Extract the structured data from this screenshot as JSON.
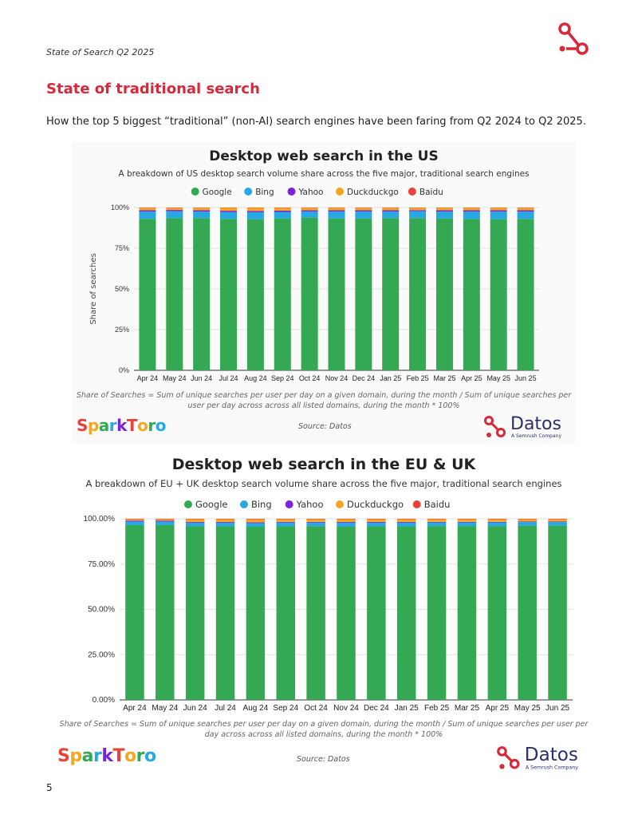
{
  "header": {
    "report_title": "State of Search Q2 2025"
  },
  "section": {
    "title": "State of traditional search",
    "intro": "How the top 5 biggest “traditional” (non-AI) search engines have been faring from Q2 2024 to Q2 2025."
  },
  "colors": {
    "Google": "#34a853",
    "Bing": "#28a8e0",
    "Yahoo": "#7b24d4",
    "Duckduckgo": "#f5a623",
    "Baidu": "#e8433a",
    "brand_red": "#d9283a"
  },
  "chart_data": [
    {
      "type": "bar",
      "stacked": true,
      "title": "Desktop web search in the US",
      "subtitle": "A breakdown of US desktop search volume share across the five major, traditional search engines",
      "ylabel": "Share of searches",
      "ylim": [
        0,
        100
      ],
      "yticks": [
        "0%",
        "25%",
        "50%",
        "75%",
        "100%"
      ],
      "legend_position": "top",
      "categories": [
        "Apr 24",
        "May 24",
        "Jun 24",
        "Jul 24",
        "Aug 24",
        "Sep 24",
        "Oct 24",
        "Nov 24",
        "Dec 24",
        "Jan 25",
        "Feb 25",
        "Mar 25",
        "Apr 25",
        "May 25",
        "Jun 25"
      ],
      "series": [
        {
          "name": "Google",
          "values": [
            93.0,
            93.5,
            93.5,
            93.0,
            92.8,
            93.3,
            93.8,
            93.3,
            93.3,
            93.5,
            93.5,
            93.2,
            93.0,
            92.8,
            93.0
          ]
        },
        {
          "name": "Bing",
          "values": [
            4.5,
            4.2,
            4.0,
            4.2,
            4.3,
            4.0,
            3.8,
            4.2,
            4.2,
            4.0,
            4.2,
            4.3,
            4.5,
            4.7,
            4.5
          ]
        },
        {
          "name": "Yahoo",
          "values": [
            0.8,
            0.8,
            0.8,
            0.8,
            0.8,
            0.8,
            0.7,
            0.8,
            0.8,
            0.8,
            0.7,
            0.8,
            0.8,
            0.8,
            0.8
          ]
        },
        {
          "name": "Duckduckgo",
          "values": [
            1.5,
            1.3,
            1.5,
            1.8,
            1.9,
            1.7,
            1.5,
            1.5,
            1.5,
            1.5,
            1.4,
            1.5,
            1.5,
            1.5,
            1.5
          ]
        },
        {
          "name": "Baidu",
          "values": [
            0.2,
            0.2,
            0.2,
            0.2,
            0.2,
            0.2,
            0.2,
            0.2,
            0.2,
            0.2,
            0.2,
            0.2,
            0.2,
            0.2,
            0.2
          ]
        }
      ],
      "footnote": "Share of Searches = Sum of unique searches per user per day on a given domain, during the month / Sum of unique searches per user per day across across all listed domains, during the month * 100%",
      "source": "Source: Datos"
    },
    {
      "type": "bar",
      "stacked": true,
      "title": "Desktop web search in the EU & UK",
      "subtitle": "A breakdown of EU + UK desktop search volume share across the five major, traditional search engines",
      "ylabel": "Share of searches",
      "ylim": [
        0,
        100
      ],
      "yticks": [
        "0.00%",
        "25.00%",
        "50.00%",
        "75.00%",
        "100.00%"
      ],
      "legend_position": "top",
      "categories": [
        "Apr 24",
        "May 24",
        "Jun 24",
        "Jul 24",
        "Aug 24",
        "Sep 24",
        "Oct 24",
        "Nov 24",
        "Dec 24",
        "Jan 25",
        "Feb 25",
        "Mar 25",
        "Apr 25",
        "May 25",
        "Jun 25"
      ],
      "series": [
        {
          "name": "Google",
          "values": [
            96.5,
            96.5,
            95.8,
            95.8,
            95.6,
            95.8,
            95.9,
            95.6,
            95.8,
            95.8,
            96.0,
            96.0,
            96.0,
            96.2,
            96.2
          ]
        },
        {
          "name": "Bing",
          "values": [
            2.0,
            2.0,
            2.0,
            2.0,
            2.0,
            2.1,
            2.0,
            2.2,
            2.0,
            2.0,
            2.0,
            2.0,
            2.0,
            2.0,
            2.0
          ]
        },
        {
          "name": "Yahoo",
          "values": [
            0.5,
            0.4,
            0.4,
            0.4,
            0.4,
            0.4,
            0.4,
            0.4,
            0.4,
            0.4,
            0.3,
            0.3,
            0.3,
            0.3,
            0.3
          ]
        },
        {
          "name": "Duckduckgo",
          "values": [
            0.7,
            0.8,
            1.5,
            1.5,
            1.7,
            1.4,
            1.4,
            1.5,
            1.5,
            1.5,
            1.4,
            1.4,
            1.4,
            1.2,
            1.2
          ]
        },
        {
          "name": "Baidu",
          "values": [
            0.3,
            0.3,
            0.3,
            0.3,
            0.3,
            0.3,
            0.3,
            0.3,
            0.3,
            0.3,
            0.3,
            0.3,
            0.3,
            0.3,
            0.3
          ]
        }
      ],
      "footnote": "Share of Searches = Sum of unique searches per user per day on a given domain, during the month / Sum of unique searches per user per day across across all listed domains, during the month * 100%",
      "source": "Source: Datos"
    }
  ],
  "logos": {
    "sparktoro_letters": [
      "S",
      "p",
      "a",
      "r",
      "k",
      "T",
      "o",
      "r",
      "o"
    ],
    "sparktoro_colors": [
      "#e8433a",
      "#f5a623",
      "#34a853",
      "#28a8e0",
      "#7b24d4",
      "#e8433a",
      "#f5a623",
      "#34a853",
      "#28a8e0"
    ],
    "datos_name": "Datos",
    "datos_tagline": "A Semrush Company"
  },
  "page_number": "5"
}
